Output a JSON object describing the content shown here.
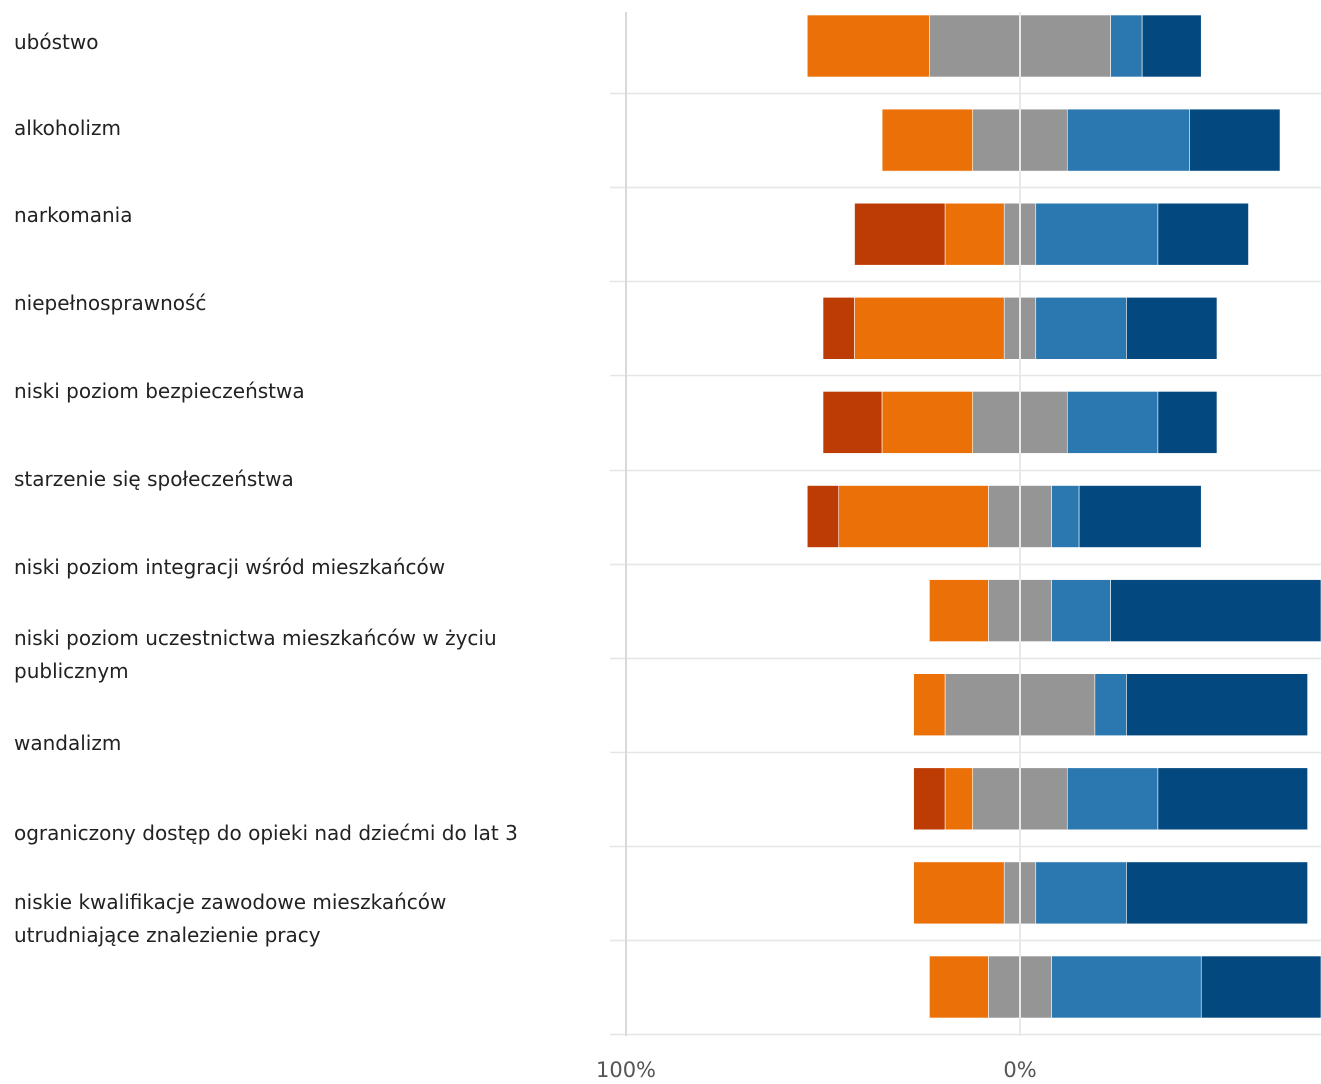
{
  "chart_data": {
    "type": "bar",
    "orientation": "horizontal",
    "stacked": "diverging",
    "categories": [
      "ubóstwo",
      "alkoholizm",
      "narkomania",
      "niepełnosprawność",
      "niski poziom bezpieczeństwa",
      "starzenie się społeczeństwa",
      "niski poziom integracji wśród mieszkańców",
      "niski poziom uczestnictwa mieszkańców w życiu publicznym",
      "wandalizm",
      "ograniczony dostęp do opieki nad dziećmi do lat 3",
      "niskie kwalifikacje zawodowe mieszkańców utrudniające znalezienie pracy"
    ],
    "bars": [
      {
        "segments": [
          {
            "color": "#ec7008",
            "from": -54,
            "to": -23
          },
          {
            "color": "#959595",
            "from": -23,
            "to": 23
          },
          {
            "color": "#2b78b0",
            "from": 23,
            "to": 31
          },
          {
            "color": "#034980",
            "from": 31,
            "to": 46
          }
        ]
      },
      {
        "segments": [
          {
            "color": "#ec7008",
            "from": -35,
            "to": -12
          },
          {
            "color": "#959595",
            "from": -12,
            "to": 12
          },
          {
            "color": "#2b78b0",
            "from": 12,
            "to": 43
          },
          {
            "color": "#034980",
            "from": 43,
            "to": 66
          }
        ]
      },
      {
        "segments": [
          {
            "color": "#bd3c04",
            "from": -42,
            "to": -19
          },
          {
            "color": "#ec7008",
            "from": -19,
            "to": -4
          },
          {
            "color": "#959595",
            "from": -4,
            "to": 4
          },
          {
            "color": "#2b78b0",
            "from": 4,
            "to": 35
          },
          {
            "color": "#034980",
            "from": 35,
            "to": 58
          }
        ]
      },
      {
        "segments": [
          {
            "color": "#bd3c04",
            "from": -50,
            "to": -42
          },
          {
            "color": "#ec7008",
            "from": -42,
            "to": -4
          },
          {
            "color": "#959595",
            "from": -4,
            "to": 4
          },
          {
            "color": "#2b78b0",
            "from": 4,
            "to": 27
          },
          {
            "color": "#034980",
            "from": 27,
            "to": 50
          }
        ]
      },
      {
        "segments": [
          {
            "color": "#bd3c04",
            "from": -50,
            "to": -35
          },
          {
            "color": "#ec7008",
            "from": -35,
            "to": -12
          },
          {
            "color": "#959595",
            "from": -12,
            "to": 12
          },
          {
            "color": "#2b78b0",
            "from": 12,
            "to": 35
          },
          {
            "color": "#034980",
            "from": 35,
            "to": 50
          }
        ]
      },
      {
        "segments": [
          {
            "color": "#bd3c04",
            "from": -54,
            "to": -46
          },
          {
            "color": "#ec7008",
            "from": -46,
            "to": -8
          },
          {
            "color": "#959595",
            "from": -8,
            "to": 8
          },
          {
            "color": "#2b78b0",
            "from": 8,
            "to": 15
          },
          {
            "color": "#034980",
            "from": 15,
            "to": 46
          }
        ]
      },
      {
        "segments": [
          {
            "color": "#ec7008",
            "from": -23,
            "to": -8
          },
          {
            "color": "#959595",
            "from": -8,
            "to": 8
          },
          {
            "color": "#2b78b0",
            "from": 8,
            "to": 23
          },
          {
            "color": "#034980",
            "from": 23,
            "to": 77
          }
        ]
      },
      {
        "segments": [
          {
            "color": "#ec7008",
            "from": -27,
            "to": -19
          },
          {
            "color": "#959595",
            "from": -19,
            "to": 19
          },
          {
            "color": "#2b78b0",
            "from": 19,
            "to": 27
          },
          {
            "color": "#034980",
            "from": 27,
            "to": 73
          }
        ]
      },
      {
        "segments": [
          {
            "color": "#bd3c04",
            "from": -27,
            "to": -19
          },
          {
            "color": "#ec7008",
            "from": -19,
            "to": -12
          },
          {
            "color": "#959595",
            "from": -12,
            "to": 12
          },
          {
            "color": "#2b78b0",
            "from": 12,
            "to": 35
          },
          {
            "color": "#034980",
            "from": 35,
            "to": 73
          }
        ]
      },
      {
        "segments": [
          {
            "color": "#ec7008",
            "from": -27,
            "to": -4
          },
          {
            "color": "#959595",
            "from": -4,
            "to": 4
          },
          {
            "color": "#2b78b0",
            "from": 4,
            "to": 27
          },
          {
            "color": "#034980",
            "from": 27,
            "to": 73
          }
        ]
      },
      {
        "segments": [
          {
            "color": "#ec7008",
            "from": -23,
            "to": -8
          },
          {
            "color": "#959595",
            "from": -8,
            "to": 8
          },
          {
            "color": "#2b78b0",
            "from": 8,
            "to": 46
          },
          {
            "color": "#034980",
            "from": 46,
            "to": 77
          }
        ]
      }
    ],
    "x_ticks": [
      {
        "value": -100,
        "label": "100%"
      },
      {
        "value": 0,
        "label": "0%"
      }
    ],
    "xlim": [
      -100,
      77
    ],
    "grid": true,
    "legend": "none"
  }
}
